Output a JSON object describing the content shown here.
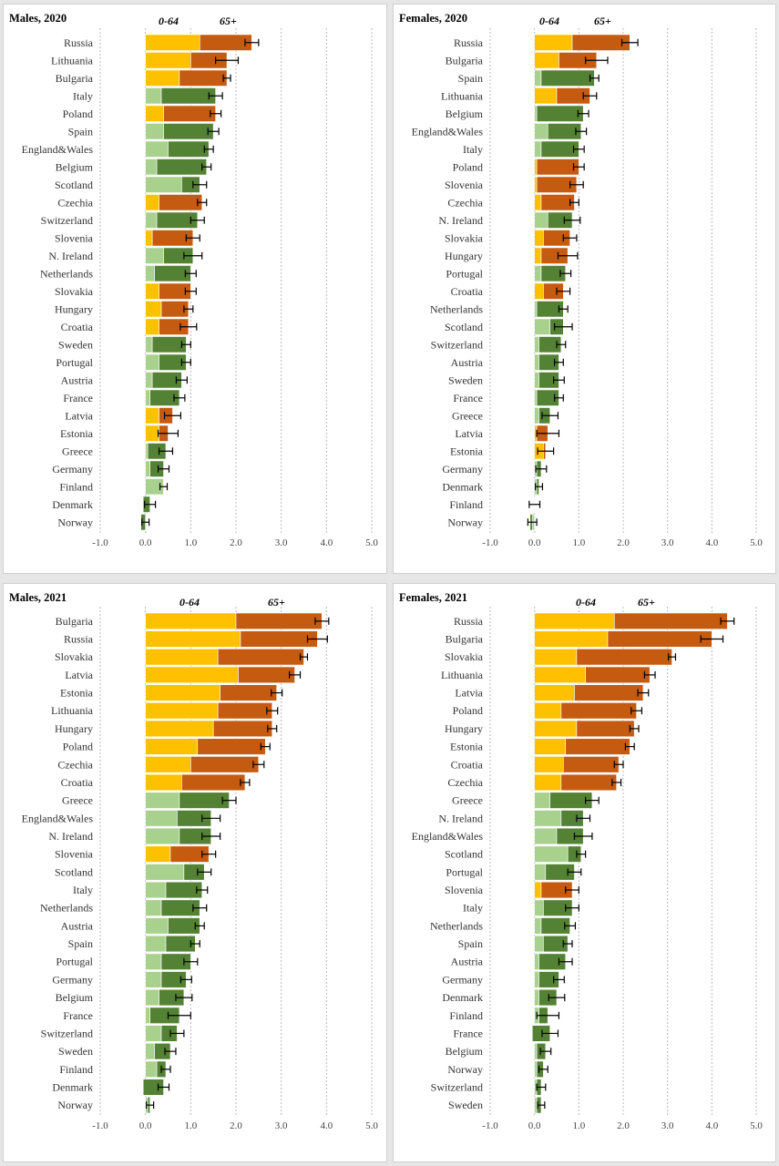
{
  "colors": {
    "young_red_countries": "#ffc000",
    "old_red_countries": "#c55a11",
    "young_green_countries": "#a9d18e",
    "old_green_countries": "#548235"
  },
  "column_labels": [
    "0-64",
    "65+"
  ],
  "x_ticks": [
    "-1.0",
    "0.0",
    "1.0",
    "2.0",
    "3.0",
    "4.0",
    "5.0"
  ],
  "chart_data": [
    {
      "type": "bar",
      "title": "Males, 2020",
      "xlim": [
        -1,
        5
      ],
      "categories": [
        "Russia",
        "Lithuania",
        "Bulgaria",
        "Italy",
        "Poland",
        "Spain",
        "England&Wales",
        "Belgium",
        "Scotland",
        "Czechia",
        "Switzerland",
        "Slovenia",
        "N. Ireland",
        "Netherlands",
        "Slovakia",
        "Hungary",
        "Croatia",
        "Sweden",
        "Portugal",
        "Austria",
        "France",
        "Latvia",
        "Estonia",
        "Greece",
        "Germany",
        "Finland",
        "Denmark",
        "Norway"
      ],
      "group": [
        "red",
        "red",
        "red",
        "green",
        "red",
        "green",
        "green",
        "green",
        "green",
        "red",
        "green",
        "red",
        "green",
        "green",
        "red",
        "red",
        "red",
        "green",
        "green",
        "green",
        "green",
        "red",
        "red",
        "green",
        "green",
        "green",
        "green",
        "green"
      ],
      "series": [
        {
          "name": "0-64",
          "values": [
            1.2,
            1.0,
            0.75,
            0.35,
            0.4,
            0.4,
            0.5,
            0.25,
            0.8,
            0.3,
            0.25,
            0.15,
            0.4,
            0.2,
            0.3,
            0.35,
            0.3,
            0.15,
            0.3,
            0.15,
            0.1,
            0.3,
            0.3,
            0.05,
            0.1,
            0.4,
            -0.05,
            -0.1
          ]
        },
        {
          "name": "65+",
          "values": [
            1.15,
            0.8,
            1.05,
            1.2,
            1.15,
            1.1,
            0.9,
            1.1,
            0.4,
            0.95,
            0.9,
            0.9,
            0.65,
            0.8,
            0.7,
            0.6,
            0.65,
            0.75,
            0.6,
            0.65,
            0.65,
            0.3,
            0.2,
            0.4,
            0.3,
            0.0,
            0.15,
            0.1
          ]
        }
      ],
      "totals": [
        2.35,
        1.8,
        1.8,
        1.55,
        1.55,
        1.5,
        1.4,
        1.35,
        1.2,
        1.25,
        1.15,
        1.05,
        1.05,
        1.0,
        1.0,
        0.95,
        0.95,
        0.9,
        0.9,
        0.8,
        0.75,
        0.6,
        0.5,
        0.45,
        0.4,
        0.4,
        0.1,
        0.0
      ],
      "errors": [
        0.15,
        0.25,
        0.08,
        0.15,
        0.12,
        0.12,
        0.1,
        0.1,
        0.15,
        0.1,
        0.15,
        0.15,
        0.2,
        0.12,
        0.12,
        0.1,
        0.18,
        0.1,
        0.1,
        0.12,
        0.12,
        0.18,
        0.22,
        0.15,
        0.12,
        0.08,
        0.12,
        0.08
      ]
    },
    {
      "type": "bar",
      "title": "Females, 2020",
      "xlim": [
        -1,
        5
      ],
      "categories": [
        "Russia",
        "Bulgaria",
        "Spain",
        "Lithuania",
        "Belgium",
        "England&Wales",
        "Italy",
        "Poland",
        "Slovenia",
        "Czechia",
        "N. Ireland",
        "Slovakia",
        "Hungary",
        "Portugal",
        "Croatia",
        "Netherlands",
        "Scotland",
        "Switzerland",
        "Austria",
        "Sweden",
        "France",
        "Greece",
        "Latvia",
        "Estonia",
        "Germany",
        "Denmark",
        "Finland",
        "Norway"
      ],
      "group": [
        "red",
        "red",
        "green",
        "red",
        "green",
        "green",
        "green",
        "red",
        "red",
        "red",
        "green",
        "red",
        "red",
        "green",
        "red",
        "green",
        "green",
        "green",
        "green",
        "green",
        "green",
        "green",
        "red",
        "red",
        "green",
        "green",
        "green",
        "green"
      ],
      "series": [
        {
          "name": "0-64",
          "values": [
            0.85,
            0.55,
            0.15,
            0.5,
            0.05,
            0.3,
            0.15,
            0.05,
            0.05,
            0.15,
            0.3,
            0.2,
            0.15,
            0.15,
            0.2,
            0.05,
            0.35,
            0.1,
            0.1,
            0.1,
            0.05,
            0.1,
            0.05,
            0.2,
            0.05,
            0.05,
            0.0,
            -0.1
          ]
        },
        {
          "name": "65+",
          "values": [
            1.3,
            0.85,
            1.2,
            0.75,
            1.05,
            0.75,
            0.85,
            0.95,
            0.9,
            0.75,
            0.55,
            0.6,
            0.6,
            0.55,
            0.45,
            0.6,
            0.3,
            0.5,
            0.45,
            0.45,
            0.5,
            0.25,
            0.25,
            0.05,
            0.1,
            0.05,
            0.0,
            0.05
          ]
        }
      ],
      "totals": [
        2.15,
        1.4,
        1.35,
        1.25,
        1.1,
        1.05,
        1.0,
        1.0,
        0.95,
        0.9,
        0.85,
        0.8,
        0.75,
        0.7,
        0.65,
        0.65,
        0.65,
        0.6,
        0.55,
        0.55,
        0.55,
        0.35,
        0.3,
        0.25,
        0.15,
        0.1,
        0.0,
        -0.05
      ],
      "errors": [
        0.18,
        0.25,
        0.1,
        0.15,
        0.12,
        0.12,
        0.12,
        0.12,
        0.15,
        0.1,
        0.18,
        0.15,
        0.22,
        0.12,
        0.15,
        0.1,
        0.2,
        0.1,
        0.1,
        0.12,
        0.1,
        0.18,
        0.25,
        0.18,
        0.12,
        0.08,
        0.12,
        0.1
      ]
    },
    {
      "type": "bar",
      "title": "Males, 2021",
      "xlim": [
        -1,
        5
      ],
      "categories": [
        "Bulgaria",
        "Russia",
        "Slovakia",
        "Latvia",
        "Estonia",
        "Lithuania",
        "Hungary",
        "Poland",
        "Czechia",
        "Croatia",
        "Greece",
        "England&Wales",
        "N. Ireland",
        "Slovenia",
        "Scotland",
        "Italy",
        "Netherlands",
        "Austria",
        "Spain",
        "Portugal",
        "Germany",
        "Belgium",
        "France",
        "Switzerland",
        "Sweden",
        "Finland",
        "Denmark",
        "Norway"
      ],
      "group": [
        "red",
        "red",
        "red",
        "red",
        "red",
        "red",
        "red",
        "red",
        "red",
        "red",
        "green",
        "green",
        "green",
        "red",
        "green",
        "green",
        "green",
        "green",
        "green",
        "green",
        "green",
        "green",
        "green",
        "green",
        "green",
        "green",
        "green",
        "green"
      ],
      "series": [
        {
          "name": "0-64",
          "values": [
            2.0,
            2.1,
            1.6,
            2.05,
            1.65,
            1.6,
            1.5,
            1.15,
            1.0,
            0.8,
            0.75,
            0.7,
            0.75,
            0.55,
            0.85,
            0.45,
            0.35,
            0.5,
            0.45,
            0.35,
            0.35,
            0.3,
            0.1,
            0.35,
            0.2,
            0.25,
            -0.05,
            0.05
          ]
        },
        {
          "name": "65+",
          "values": [
            1.9,
            1.7,
            1.9,
            1.25,
            1.25,
            1.2,
            1.3,
            1.5,
            1.5,
            1.4,
            1.1,
            0.75,
            0.7,
            0.85,
            0.45,
            0.8,
            0.85,
            0.7,
            0.65,
            0.65,
            0.55,
            0.55,
            0.65,
            0.35,
            0.35,
            0.2,
            0.45,
            0.05
          ]
        }
      ],
      "totals": [
        3.9,
        3.8,
        3.5,
        3.3,
        2.9,
        2.8,
        2.8,
        2.65,
        2.5,
        2.2,
        1.85,
        1.45,
        1.45,
        1.4,
        1.3,
        1.25,
        1.2,
        1.2,
        1.1,
        1.0,
        0.9,
        0.85,
        0.75,
        0.7,
        0.55,
        0.45,
        0.4,
        0.1
      ],
      "errors": [
        0.15,
        0.22,
        0.08,
        0.12,
        0.12,
        0.12,
        0.1,
        0.1,
        0.12,
        0.1,
        0.15,
        0.2,
        0.2,
        0.15,
        0.15,
        0.12,
        0.15,
        0.1,
        0.1,
        0.15,
        0.12,
        0.18,
        0.25,
        0.15,
        0.12,
        0.1,
        0.12,
        0.08
      ]
    },
    {
      "type": "bar",
      "title": "Females, 2021",
      "xlim": [
        -1,
        5
      ],
      "categories": [
        "Russia",
        "Bulgaria",
        "Slovakia",
        "Lithuania",
        "Latvia",
        "Poland",
        "Hungary",
        "Estonia",
        "Croatia",
        "Czechia",
        "Greece",
        "N. Ireland",
        "England&Wales",
        "Scotland",
        "Portugal",
        "Slovenia",
        "Italy",
        "Netherlands",
        "Spain",
        "Austria",
        "Germany",
        "Denmark",
        "Finland",
        "France",
        "Belgium",
        "Norway",
        "Switzerland",
        "Sweden"
      ],
      "group": [
        "red",
        "red",
        "red",
        "red",
        "red",
        "red",
        "red",
        "red",
        "red",
        "red",
        "green",
        "green",
        "green",
        "green",
        "green",
        "red",
        "green",
        "green",
        "green",
        "green",
        "green",
        "green",
        "green",
        "green",
        "green",
        "green",
        "green",
        "green"
      ],
      "series": [
        {
          "name": "0-64",
          "values": [
            1.8,
            1.65,
            0.95,
            1.15,
            0.9,
            0.6,
            0.95,
            0.7,
            0.65,
            0.6,
            0.35,
            0.6,
            0.5,
            0.75,
            0.25,
            0.15,
            0.2,
            0.15,
            0.2,
            0.1,
            0.1,
            0.1,
            0.1,
            -0.05,
            0.05,
            0.05,
            0.05,
            0.05
          ]
        },
        {
          "name": "65+",
          "values": [
            2.55,
            2.35,
            2.15,
            1.45,
            1.55,
            1.7,
            1.3,
            1.45,
            1.25,
            1.25,
            0.95,
            0.5,
            0.6,
            0.3,
            0.65,
            0.7,
            0.65,
            0.65,
            0.55,
            0.6,
            0.45,
            0.4,
            0.2,
            0.4,
            0.2,
            0.15,
            0.1,
            0.1
          ]
        }
      ],
      "totals": [
        4.35,
        4.0,
        3.1,
        2.6,
        2.45,
        2.3,
        2.25,
        2.15,
        1.9,
        1.85,
        1.3,
        1.1,
        1.1,
        1.05,
        0.9,
        0.85,
        0.85,
        0.8,
        0.75,
        0.7,
        0.55,
        0.5,
        0.3,
        0.35,
        0.25,
        0.2,
        0.15,
        0.15
      ],
      "errors": [
        0.15,
        0.25,
        0.08,
        0.12,
        0.12,
        0.12,
        0.1,
        0.1,
        0.1,
        0.1,
        0.15,
        0.15,
        0.2,
        0.1,
        0.15,
        0.15,
        0.15,
        0.12,
        0.1,
        0.15,
        0.12,
        0.18,
        0.25,
        0.18,
        0.12,
        0.1,
        0.1,
        0.08
      ]
    }
  ]
}
